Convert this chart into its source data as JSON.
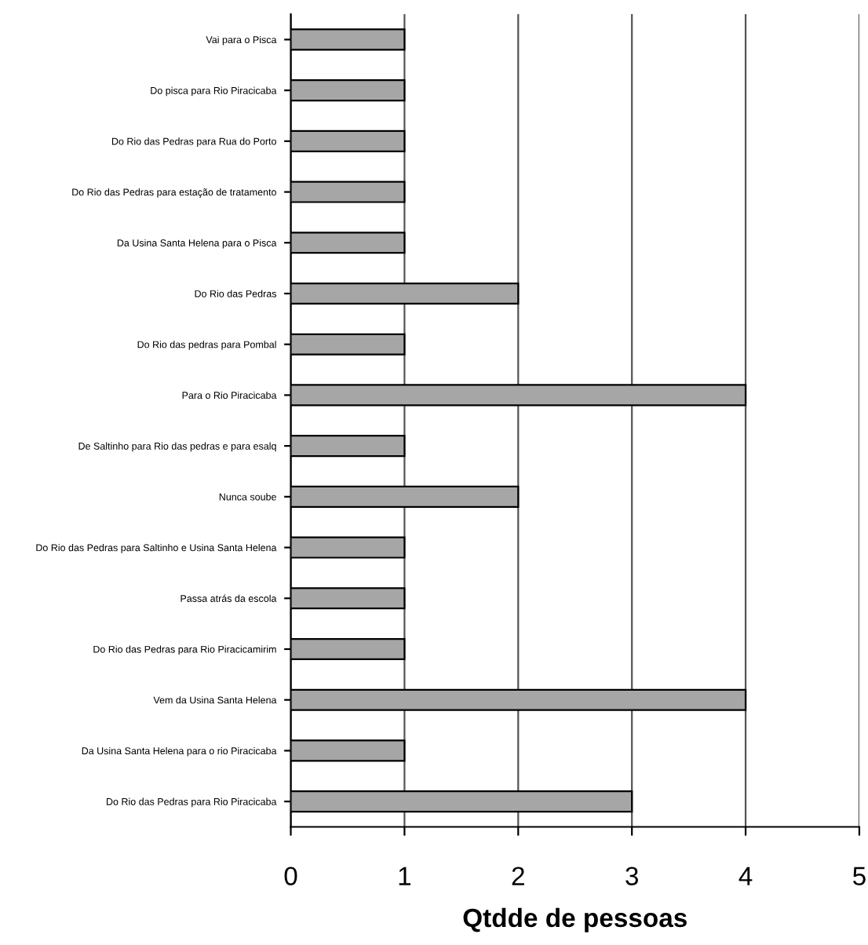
{
  "chart_data": {
    "type": "bar",
    "orientation": "horizontal",
    "xlabel": "Qtdde de pessoas",
    "categories": [
      "Vai para o Pisca",
      "Do pisca para Rio Piracicaba",
      "Do Rio das Pedras para Rua do Porto",
      "Do Rio das Pedras para estação de tratamento",
      "Da Usina Santa Helena para o Pisca",
      "Do Rio das Pedras",
      "Do Rio das pedras para Pombal",
      "Para o Rio Piracicaba",
      "De Saltinho para Rio das pedras e para esalq",
      "Nunca soube",
      "Do Rio das Pedras para Saltinho e Usina Santa Helena",
      "Passa atrás da escola",
      "Do Rio das Pedras para Rio Piracicamirim",
      "Vem da Usina Santa Helena",
      "Da Usina Santa Helena para o rio Piracicaba",
      "Do Rio das Pedras para Rio Piracicaba"
    ],
    "values": [
      1,
      1,
      1,
      1,
      1,
      2,
      1,
      4,
      1,
      2,
      1,
      1,
      1,
      4,
      1,
      3
    ],
    "color": "#a6a6a6",
    "xlim": [
      0,
      5
    ],
    "xticks": [
      0,
      1,
      2,
      3,
      4,
      5
    ],
    "grid": "x"
  }
}
